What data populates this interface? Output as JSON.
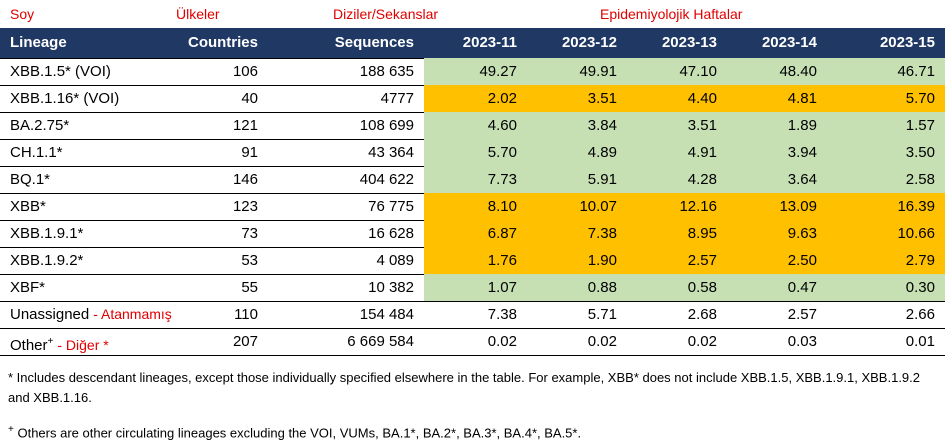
{
  "annotations": {
    "lineage": "Soy",
    "countries": "Ülkeler",
    "sequences": "Diziler/Sekanslar",
    "weeks": "Epidemiyolojik Haftalar"
  },
  "table": {
    "header": [
      "Lineage",
      "Countries",
      "Sequences",
      "2023-11",
      "2023-12",
      "2023-13",
      "2023-14",
      "2023-15"
    ],
    "rows": [
      {
        "cells": [
          "XBB.1.5* (VOI)",
          "106",
          "188 635",
          "49.27",
          "49.91",
          "47.10",
          "48.40",
          "46.71"
        ],
        "fill": "#c6e0b4"
      },
      {
        "cells": [
          "XBB.1.16* (VOI)",
          "40",
          "4777",
          "2.02",
          "3.51",
          "4.40",
          "4.81",
          "5.70"
        ],
        "fill": "#ffc000"
      },
      {
        "cells": [
          "BA.2.75*",
          "121",
          "108 699",
          "4.60",
          "3.84",
          "3.51",
          "1.89",
          "1.57"
        ],
        "fill": "#c6e0b4"
      },
      {
        "cells": [
          "CH.1.1*",
          "91",
          "43 364",
          "5.70",
          "4.89",
          "4.91",
          "3.94",
          "3.50"
        ],
        "fill": "#c6e0b4"
      },
      {
        "cells": [
          "BQ.1*",
          "146",
          "404 622",
          "7.73",
          "5.91",
          "4.28",
          "3.64",
          "2.58"
        ],
        "fill": "#c6e0b4"
      },
      {
        "cells": [
          "XBB*",
          "123",
          "76 775",
          "8.10",
          "10.07",
          "12.16",
          "13.09",
          "16.39"
        ],
        "fill": "#ffc000"
      },
      {
        "cells": [
          "XBB.1.9.1*",
          "73",
          "16 628",
          "6.87",
          "7.38",
          "8.95",
          "9.63",
          "10.66"
        ],
        "fill": "#ffc000"
      },
      {
        "cells": [
          "XBB.1.9.2*",
          "53",
          "4 089",
          "1.76",
          "1.90",
          "2.57",
          "2.50",
          "2.79"
        ],
        "fill": "#ffc000"
      },
      {
        "cells": [
          "XBF*",
          "55",
          "10 382",
          "1.07",
          "0.88",
          "0.58",
          "0.47",
          "0.30"
        ],
        "fill": "#c6e0b4"
      },
      {
        "cells": [
          "Unassigned",
          "110",
          "154 484",
          "7.38",
          "5.71",
          "2.68",
          "2.57",
          "2.66"
        ],
        "note": "- Atanmamış"
      },
      {
        "cells": [
          "Other",
          "207",
          "6 669 584",
          "0.02",
          "0.02",
          "0.02",
          "0.03",
          "0.01"
        ],
        "sup": "+",
        "note": "- Diğer *"
      }
    ]
  },
  "footnotes": [
    {
      "text": "* Includes descendant lineages, except those individually specified elsewhere in the table. For example, XBB* does not include XBB.1.5, XBB.1.9.1, XBB.1.9.2 and XBB.1.16."
    },
    {
      "mark": "+",
      "text": "Others are other circulating lineages excluding the VOI, VUMs, BA.1*, BA.2*, BA.3*, BA.4*, BA.5*."
    }
  ]
}
